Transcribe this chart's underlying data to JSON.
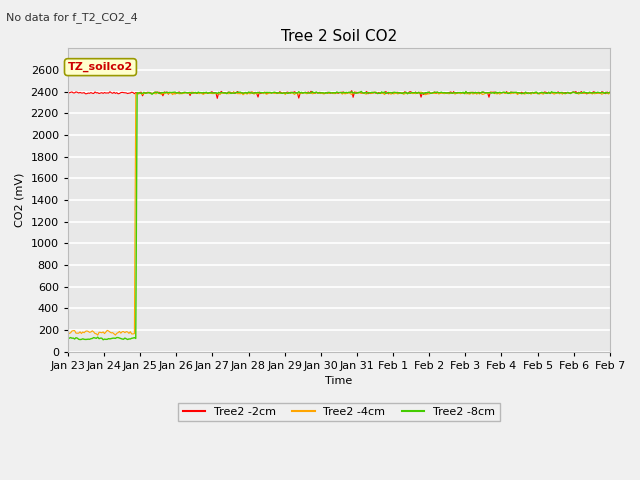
{
  "title": "Tree 2 Soil CO2",
  "no_data_text": "No data for f_T2_CO2_4",
  "xlabel": "Time",
  "ylabel": "CO2 (mV)",
  "ylim": [
    0,
    2800
  ],
  "yticks": [
    0,
    200,
    400,
    600,
    800,
    1000,
    1200,
    1400,
    1600,
    1800,
    2000,
    2200,
    2400,
    2600
  ],
  "xtick_labels": [
    "Jan 23",
    "Jan 24",
    "Jan 25",
    "Jan 26",
    "Jan 27",
    "Jan 28",
    "Jan 29",
    "Jan 30",
    "Jan 31",
    "Feb 1",
    "Feb 2",
    "Feb 3",
    "Feb 4",
    "Feb 5",
    "Feb 6",
    "Feb 7"
  ],
  "fig_bg_color": "#f0f0f0",
  "plot_bg_color": "#e8e8e8",
  "grid_color": "#ffffff",
  "legend_box_color": "#ffffcc",
  "legend_box_edge": "#999900",
  "annotation_text": "TZ_soilco2",
  "annotation_color": "#cc0000",
  "title_fontsize": 11,
  "label_fontsize": 8,
  "tick_fontsize": 8,
  "series": {
    "red": {
      "label": "Tree2 -2cm",
      "color": "#ff0000",
      "phase1_value": 2390,
      "phase2_value": 2390,
      "noise": 5
    },
    "orange": {
      "label": "Tree2 -4cm",
      "color": "#ffa500",
      "phase1_value": 175,
      "phase2_value": 2385,
      "noise": 5
    },
    "green": {
      "label": "Tree2 -8cm",
      "color": "#44cc00",
      "phase1_value": 120,
      "phase2_value": 2390,
      "noise": 4,
      "spike_value": 2390
    }
  },
  "total_points": 400,
  "phase1_points": 50
}
